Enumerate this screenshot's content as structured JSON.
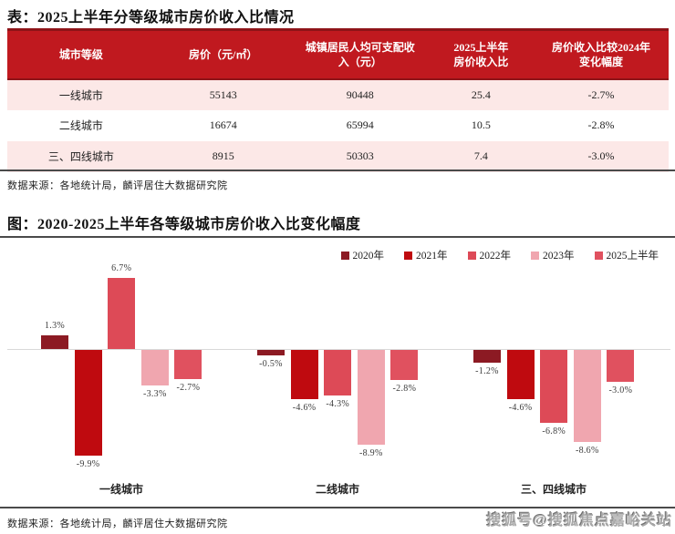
{
  "table_section": {
    "title": "表：2025上半年分等级城市房价收入比情况",
    "headers": [
      "城市等级",
      "房价（元/㎡）",
      "城镇居民人均可支配收\n入（元）",
      "2025上半年\n房价收入比",
      "房价收入比较2024年\n变化幅度"
    ],
    "rows": [
      [
        "一线城市",
        "55143",
        "90448",
        "25.4",
        "-2.7%"
      ],
      [
        "二线城市",
        "16674",
        "65994",
        "10.5",
        "-2.8%"
      ],
      [
        "三、四线城市",
        "8915",
        "50303",
        "7.4",
        "-3.0%"
      ]
    ],
    "source": "数据来源：各地统计局，麟评居住大数据研究院"
  },
  "chart_section": {
    "title": "图：2020-2025上半年各等级城市房价收入比变化幅度",
    "source": "数据来源：各地统计局，麟评居住大数据研究院"
  },
  "chart_data": {
    "type": "bar",
    "title": "图：2020-2025上半年各等级城市房价收入比变化幅度",
    "categories": [
      "一线城市",
      "二线城市",
      "三、四线城市"
    ],
    "series": [
      {
        "name": "2020年",
        "color": "#8c1a23",
        "values": [
          1.3,
          -0.5,
          -1.2
        ]
      },
      {
        "name": "2021年",
        "color": "#bf0a0f",
        "values": [
          -9.9,
          -4.6,
          -4.6
        ]
      },
      {
        "name": "2022年",
        "color": "#dd4a57",
        "values": [
          6.7,
          -4.3,
          -6.8
        ]
      },
      {
        "name": "2023年",
        "color": "#f0a6af",
        "values": [
          -3.3,
          -8.9,
          -8.6
        ]
      },
      {
        "name": "2025上半年",
        "color": "#e0515f",
        "values": [
          -2.7,
          -2.8,
          -3.0
        ]
      }
    ],
    "value_suffix": "%",
    "ylim": [
      -10.5,
      7.5
    ],
    "legend_position": "top-right",
    "grid": false,
    "zero_line": true
  },
  "watermark": {
    "text": "搜狐号@搜狐焦点嘉峪关站"
  },
  "colors": {
    "header_bg": "#c0191f",
    "header_border": "#8e1418",
    "row_alt_bg": "#fce8e7",
    "rule": "#4a4a4a",
    "zero_line": "#d9d9d9"
  }
}
